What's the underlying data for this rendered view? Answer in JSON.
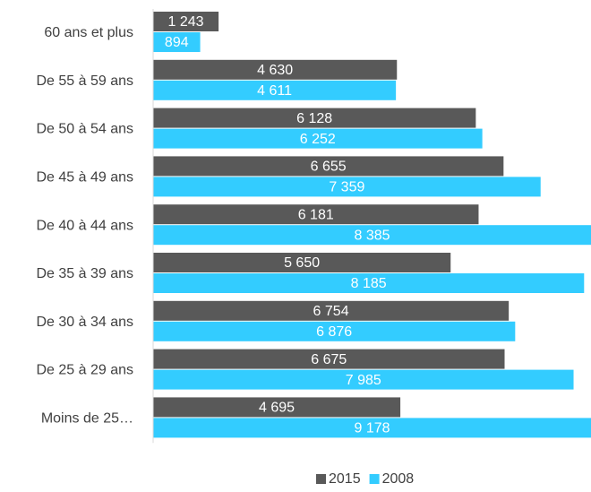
{
  "chart_data": {
    "type": "bar",
    "orientation": "horizontal",
    "categories": [
      "60 ans et plus",
      "De 55 à 59 ans",
      "De 50 à 54 ans",
      "De 45 à 49 ans",
      "De 40 à 44 ans",
      "De 35 à 39 ans",
      "De 30 à 34 ans",
      "De 25 à 29 ans",
      "Moins de 25…"
    ],
    "series": [
      {
        "name": "2015",
        "color": "#595959",
        "values": [
          1243,
          4630,
          6128,
          6655,
          6181,
          5650,
          6754,
          6675,
          4695
        ],
        "value_labels": [
          "1 243",
          "4 630",
          "6 128",
          "6 655",
          "6 181",
          "5 650",
          "6 754",
          "6 675",
          "4 695"
        ]
      },
      {
        "name": "2008",
        "color": "#33ccff",
        "values": [
          894,
          4611,
          6252,
          7359,
          8385,
          8185,
          6876,
          7985,
          9178
        ],
        "value_labels": [
          "894",
          "4 611",
          "6 252",
          "7 359",
          "8 385",
          "8 185",
          "6 876",
          "7 985",
          "9 178"
        ]
      }
    ],
    "xlim": [
      0,
      8316
    ],
    "legend": "bottom"
  }
}
